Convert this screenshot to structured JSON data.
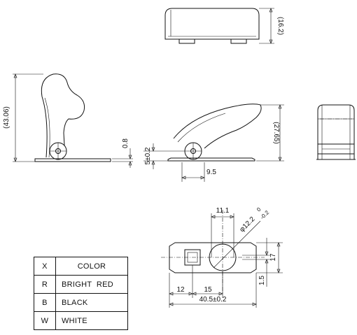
{
  "dimensions": {
    "top_height": "(16.2)",
    "overall_height": "(43.06)",
    "base_thickness": "0.8",
    "pivot_height": "5±0.2",
    "raised_height": "(27.65)",
    "pivot_offset": "9.5",
    "window_width": "11.1",
    "hole_diameter": "φ12.2",
    "hole_tol_upper": "0",
    "hole_tol_lower": "-0.2",
    "base_width": "17",
    "slot_width": "1.5",
    "hole_offset_1": "12",
    "hole_offset_2": "15",
    "base_length": "40.5±0.2"
  },
  "color_table": {
    "header_key": "X",
    "header_value": "COLOR",
    "rows": [
      {
        "code": "R",
        "color": "BRIGHT  RED"
      },
      {
        "code": "B",
        "color": "BLACK"
      },
      {
        "code": "W",
        "color": "WHITE"
      }
    ]
  }
}
